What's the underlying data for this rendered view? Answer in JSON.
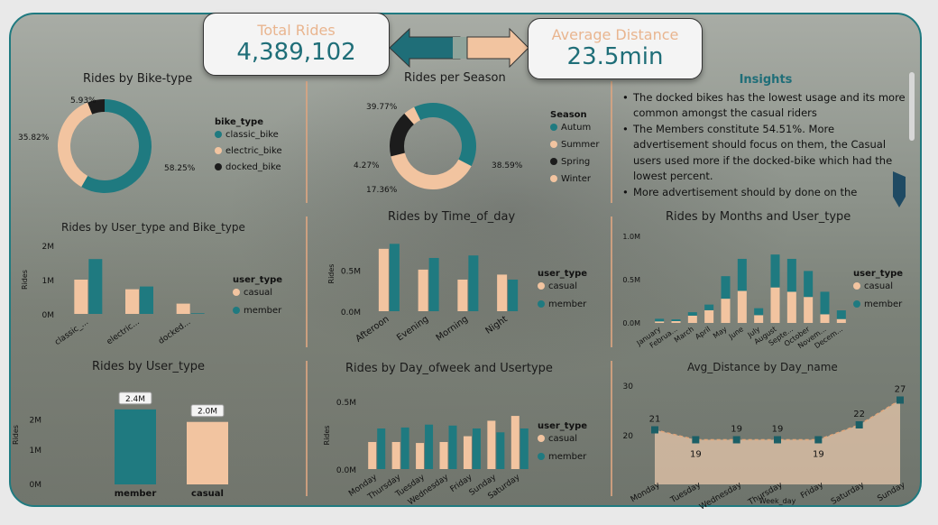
{
  "colors": {
    "teal": "#1f7a80",
    "peach": "#f2c4a0",
    "black": "#1c1c1c",
    "accent_text": "#e9b58f"
  },
  "kpis": {
    "total_rides": {
      "label": "Total Rides",
      "value": "4,389,102"
    },
    "avg_distance": {
      "label": "Average Distance",
      "value": "23.5min"
    }
  },
  "insights": {
    "title": "Insights",
    "items": [
      "The docked bikes has the lowest usage and its more common amongst the casual riders",
      "The Members constitute 54.51%. More advertisement should focus on them, the Casual users used more if the docked-bike which had the lowest percent.",
      "More advertisement should by done on the"
    ]
  },
  "chart_data": [
    {
      "type": "pie",
      "title": "Rides by Bike-type",
      "legend_title": "bike_type",
      "slices": [
        {
          "name": "classic_bike",
          "value": 58.25,
          "label": "58.25%"
        },
        {
          "name": "electric_bike",
          "value": 35.82,
          "label": "35.82%"
        },
        {
          "name": "docked_bike",
          "value": 5.93,
          "label": "5.93%"
        }
      ]
    },
    {
      "type": "pie",
      "title": "Rides per Season",
      "legend_title": "Season",
      "slices": [
        {
          "name": "Autum",
          "value": 39.77,
          "label": "39.77%"
        },
        {
          "name": "Summer",
          "value": 38.59,
          "label": "38.59%"
        },
        {
          "name": "Spring",
          "value": 17.36,
          "label": "17.36%"
        },
        {
          "name": "Winter",
          "value": 4.27,
          "label": "4.27%"
        }
      ]
    },
    {
      "type": "bar",
      "title": "Rides by User_type and Bike_type",
      "ylabel": "Rides",
      "legend_title": "user_type",
      "categories": [
        "classic_...",
        "electric...",
        "docked..."
      ],
      "yticks": [
        "2M",
        "1M",
        "0M"
      ],
      "ylim": [
        0,
        2000000
      ],
      "series": [
        {
          "name": "casual",
          "values": [
            1000000,
            720000,
            300000
          ]
        },
        {
          "name": "member",
          "values": [
            1600000,
            800000,
            20000
          ]
        }
      ]
    },
    {
      "type": "bar",
      "title": "Rides by Time_of_day",
      "ylabel": "Rides",
      "legend_title": "user_type",
      "categories": [
        "Afteroon",
        "Evening",
        "Morning",
        "Night"
      ],
      "yticks": [
        "0.5M",
        "0.0M"
      ],
      "ylim": [
        0,
        900000
      ],
      "series": [
        {
          "name": "casual",
          "values": [
            750000,
            500000,
            380000,
            440000
          ]
        },
        {
          "name": "member",
          "values": [
            810000,
            640000,
            670000,
            380000
          ]
        }
      ]
    },
    {
      "type": "bar",
      "title": "Rides by Months and User_type",
      "legend_title": "user_type",
      "stacked": true,
      "categories": [
        "January",
        "Februa...",
        "March",
        "April",
        "May",
        "June",
        "July",
        "August",
        "Septe...",
        "October",
        "Novem...",
        "Decem..."
      ],
      "yticks": [
        "1.0M",
        "0.5M",
        "0.0M"
      ],
      "ylim": [
        0,
        1000000
      ],
      "series": [
        {
          "name": "casual",
          "values": [
            18000,
            21000,
            84000,
            147000,
            280000,
            370000,
            90000,
            410000,
            360000,
            300000,
            100000,
            45000
          ]
        },
        {
          "name": "member",
          "values": [
            30000,
            20000,
            40000,
            65000,
            260000,
            370000,
            80000,
            380000,
            380000,
            300000,
            260000,
            100000
          ]
        }
      ]
    },
    {
      "type": "bar",
      "title": "Rides by User_type",
      "ylabel": "Rides",
      "categories": [
        "member",
        "casual"
      ],
      "values": [
        2400000,
        2000000
      ],
      "data_labels": [
        "2.4M",
        "2.0M"
      ],
      "yticks": [
        "2M",
        "1M",
        "0M"
      ],
      "ylim": [
        0,
        2800000
      ]
    },
    {
      "type": "bar",
      "title": "Rides by Day_ofweek and Usertype",
      "ylabel": "Rides",
      "legend_title": "user_type",
      "categories": [
        "Monday",
        "Thursday",
        "Tuesday",
        "Wednesday",
        "Friday",
        "Sunday",
        "Saturday"
      ],
      "yticks": [
        "0.5M",
        "0.0M"
      ],
      "ylim": [
        0,
        700000
      ],
      "series": [
        {
          "name": "casual",
          "values": [
            280000,
            280000,
            270000,
            280000,
            340000,
            500000,
            550000
          ]
        },
        {
          "name": "member",
          "values": [
            420000,
            430000,
            460000,
            450000,
            420000,
            380000,
            420000
          ]
        }
      ]
    },
    {
      "type": "area",
      "title": "Avg_Distance by Day_name",
      "xlabel": "Week_day",
      "categories": [
        "Monday",
        "Tuesday",
        "Wednesday",
        "Thursday",
        "Friday",
        "Saturday",
        "Sunday"
      ],
      "values": [
        21,
        19,
        19,
        19,
        19,
        22,
        27
      ],
      "data_labels": [
        "21",
        "19",
        "19",
        "19",
        "19",
        "22",
        "27"
      ],
      "yticks": [
        "30",
        "20"
      ],
      "ylim": [
        10,
        30
      ]
    }
  ]
}
